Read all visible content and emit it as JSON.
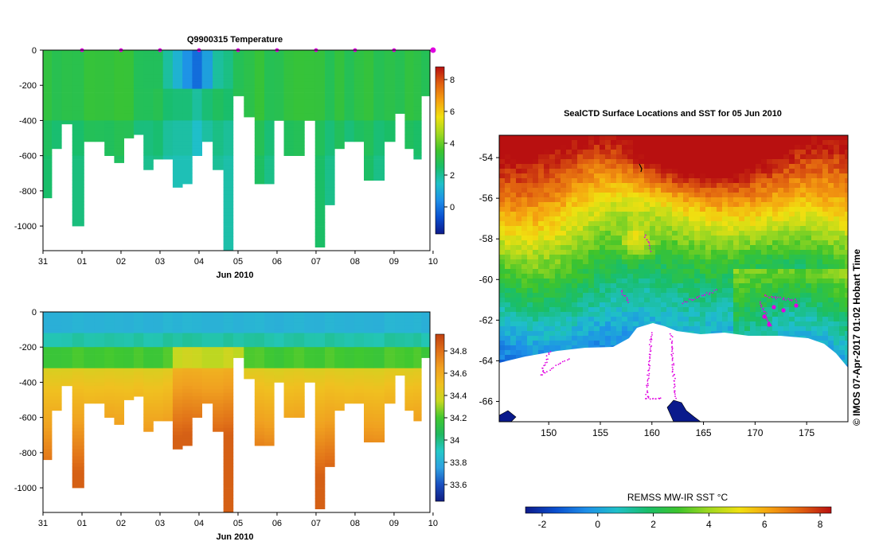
{
  "colors": {
    "ramp_sst": [
      "#0d1a8a",
      "#0a4fcf",
      "#1e8fe8",
      "#1fc0c8",
      "#19be6a",
      "#3ec42c",
      "#a0d820",
      "#f0e010",
      "#f5a010",
      "#e06010",
      "#b81010"
    ],
    "ramp_sal": [
      "#101d80",
      "#1a4fc0",
      "#2ea0e0",
      "#24c8c8",
      "#20b860",
      "#40c830",
      "#c8d820",
      "#f0c020",
      "#f0a020",
      "#e07018",
      "#c04010"
    ],
    "land": "#ffffff",
    "marker": "#e000e0"
  },
  "chart_data": [
    {
      "type": "heatmap",
      "title": "Q9900315  Temperature",
      "x_title": "Jun 2010",
      "x_ticks": [
        "31",
        "01",
        "02",
        "03",
        "04",
        "05",
        "06",
        "07",
        "08",
        "09",
        "10"
      ],
      "y_ticks": [
        "0",
        "-200",
        "-400",
        "-600",
        "-800",
        "-1000"
      ],
      "ylim": [
        -1140,
        0
      ],
      "colorbar": {
        "range": [
          -1.7,
          8.8
        ],
        "ticks": [
          "0",
          "2",
          "4",
          "6",
          "8"
        ],
        "tick_values": [
          0,
          2,
          4,
          6,
          8
        ]
      },
      "profiles": [
        {
          "t": 0.1,
          "depth": 840
        },
        {
          "t": 0.35,
          "depth": 560
        },
        {
          "t": 0.6,
          "depth": 420
        },
        {
          "t": 0.9,
          "depth": 1000
        },
        {
          "t": 1.2,
          "depth": 515
        },
        {
          "t": 1.45,
          "depth": 515
        },
        {
          "t": 1.7,
          "depth": 595
        },
        {
          "t": 1.95,
          "depth": 630
        },
        {
          "t": 2.2,
          "depth": 500
        },
        {
          "t": 2.45,
          "depth": 480
        },
        {
          "t": 2.7,
          "depth": 670
        },
        {
          "t": 2.95,
          "depth": 620
        },
        {
          "t": 3.2,
          "depth": 620
        },
        {
          "t": 3.45,
          "depth": 770
        },
        {
          "t": 3.7,
          "depth": 750
        },
        {
          "t": 3.95,
          "depth": 590
        },
        {
          "t": 4.2,
          "depth": 520
        },
        {
          "t": 4.5,
          "depth": 680
        },
        {
          "t": 4.75,
          "depth": 1140
        },
        {
          "t": 5.0,
          "depth": 250
        },
        {
          "t": 5.3,
          "depth": 380
        },
        {
          "t": 5.55,
          "depth": 745
        },
        {
          "t": 5.8,
          "depth": 745
        },
        {
          "t": 6.05,
          "depth": 390
        },
        {
          "t": 6.3,
          "depth": 600
        },
        {
          "t": 6.55,
          "depth": 600
        },
        {
          "t": 6.85,
          "depth": 400
        },
        {
          "t": 7.1,
          "depth": 1105
        },
        {
          "t": 7.35,
          "depth": 865
        },
        {
          "t": 7.6,
          "depth": 560
        },
        {
          "t": 7.85,
          "depth": 520
        },
        {
          "t": 8.1,
          "depth": 520
        },
        {
          "t": 8.35,
          "depth": 740
        },
        {
          "t": 8.6,
          "depth": 740
        },
        {
          "t": 8.9,
          "depth": 510
        },
        {
          "t": 9.15,
          "depth": 360
        },
        {
          "t": 9.4,
          "depth": 545
        },
        {
          "t": 9.6,
          "depth": 610
        },
        {
          "t": 9.8,
          "depth": 250
        }
      ],
      "surface_marks": [
        1,
        2,
        3,
        4,
        5,
        6,
        7,
        8,
        9,
        10
      ]
    },
    {
      "type": "heatmap",
      "title": "",
      "x_title": "Jun 2010",
      "x_ticks": [
        "31",
        "01",
        "02",
        "03",
        "04",
        "05",
        "06",
        "07",
        "08",
        "09",
        "10"
      ],
      "y_ticks": [
        "0",
        "-200",
        "-400",
        "-600",
        "-800",
        "-1000"
      ],
      "ylim": [
        -1140,
        0
      ],
      "colorbar": {
        "range": [
          33.45,
          34.95
        ],
        "ticks": [
          "33.6",
          "33.8",
          "34",
          "34.2",
          "34.4",
          "34.6",
          "34.8"
        ],
        "tick_values": [
          33.6,
          33.8,
          34,
          34.2,
          34.4,
          34.6,
          34.8
        ]
      }
    },
    {
      "type": "heatmap",
      "title": "SealCTD Surface Locations and SST for 05 Jun 2010",
      "x_ticks": [
        "150",
        "155",
        "160",
        "165",
        "170",
        "175"
      ],
      "x_values": [
        150,
        155,
        160,
        165,
        170,
        175
      ],
      "xlim": [
        145.2,
        179
      ],
      "y_ticks": [
        "-54",
        "-56",
        "-58",
        "-60",
        "-62",
        "-64",
        "-66"
      ],
      "y_values": [
        -54,
        -56,
        -58,
        -60,
        -62,
        -64,
        -66
      ],
      "ylim": [
        -67,
        -52.9
      ],
      "colorbar": {
        "title": "REMSS MW-IR SST °C",
        "range": [
          -2.6,
          8.4
        ],
        "ticks": [
          "-2",
          "0",
          "2",
          "4",
          "6",
          "8"
        ],
        "tick_values": [
          -2,
          0,
          2,
          4,
          6,
          8
        ]
      }
    }
  ],
  "credit": "© IMOS 07-Apr-2017 01:02 Hobart Time"
}
